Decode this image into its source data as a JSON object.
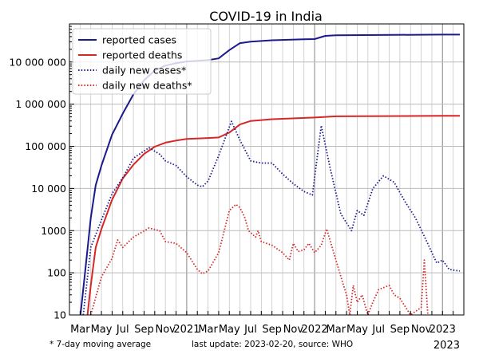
{
  "chart_data": {
    "type": "line",
    "title": "COVID-19 in India",
    "xlabel": "",
    "ylabel": "",
    "yscale": "log",
    "ylim": [
      10,
      80000000
    ],
    "xlim": [
      "2020-02-01",
      "2023-03-01"
    ],
    "grid": true,
    "legend_position": "top-left",
    "y_ticks": [
      {
        "value": 10,
        "label": "10"
      },
      {
        "value": 100,
        "label": "100"
      },
      {
        "value": 1000,
        "label": "1000"
      },
      {
        "value": 10000,
        "label": "10 000"
      },
      {
        "value": 100000,
        "label": "100 000"
      },
      {
        "value": 1000000,
        "label": "1 000 000"
      },
      {
        "value": 10000000,
        "label": "10 000 000"
      }
    ],
    "x_ticks": [
      {
        "date": "2020-03-01",
        "label": "Mar"
      },
      {
        "date": "2020-05-01",
        "label": "May"
      },
      {
        "date": "2020-07-01",
        "label": "Jul"
      },
      {
        "date": "2020-09-01",
        "label": "Sep"
      },
      {
        "date": "2020-11-01",
        "label": "Nov"
      },
      {
        "date": "2021-01-01",
        "label": "2021"
      },
      {
        "date": "2021-03-01",
        "label": "Mar"
      },
      {
        "date": "2021-05-01",
        "label": "May"
      },
      {
        "date": "2021-07-01",
        "label": "Jul"
      },
      {
        "date": "2021-09-01",
        "label": "Sep"
      },
      {
        "date": "2021-11-01",
        "label": "Nov"
      },
      {
        "date": "2022-01-01",
        "label": "2022"
      },
      {
        "date": "2022-03-01",
        "label": "Mar"
      },
      {
        "date": "2022-05-01",
        "label": "May"
      },
      {
        "date": "2022-07-01",
        "label": "Jul"
      },
      {
        "date": "2022-09-01",
        "label": "Sep"
      },
      {
        "date": "2022-11-01",
        "label": "Nov"
      },
      {
        "date": "2023-01-01",
        "label": "2023"
      }
    ],
    "series": [
      {
        "name": "reported cases",
        "color": "#1a1a8c",
        "style": "solid",
        "points": [
          [
            "2020-03-02",
            10
          ],
          [
            "2020-03-15",
            100
          ],
          [
            "2020-04-01",
            2000
          ],
          [
            "2020-04-15",
            12000
          ],
          [
            "2020-05-01",
            35000
          ],
          [
            "2020-06-01",
            190000
          ],
          [
            "2020-07-01",
            600000
          ],
          [
            "2020-08-01",
            1700000
          ],
          [
            "2020-09-01",
            3700000
          ],
          [
            "2020-10-01",
            6300000
          ],
          [
            "2020-11-01",
            8200000
          ],
          [
            "2020-12-01",
            9400000
          ],
          [
            "2021-01-01",
            10300000
          ],
          [
            "2021-03-01",
            11100000
          ],
          [
            "2021-04-01",
            12200000
          ],
          [
            "2021-05-01",
            19200000
          ],
          [
            "2021-06-01",
            28000000
          ],
          [
            "2021-07-01",
            30400000
          ],
          [
            "2021-09-01",
            32800000
          ],
          [
            "2021-12-01",
            34600000
          ],
          [
            "2022-01-01",
            34900000
          ],
          [
            "2022-02-01",
            41600000
          ],
          [
            "2022-03-01",
            42900000
          ],
          [
            "2022-07-01",
            43700000
          ],
          [
            "2023-01-01",
            44700000
          ],
          [
            "2023-02-20",
            44700000
          ]
        ]
      },
      {
        "name": "reported deaths",
        "color": "#d62728",
        "style": "solid",
        "points": [
          [
            "2020-03-22",
            10
          ],
          [
            "2020-04-01",
            50
          ],
          [
            "2020-04-15",
            400
          ],
          [
            "2020-05-01",
            1100
          ],
          [
            "2020-06-01",
            5400
          ],
          [
            "2020-07-01",
            17400
          ],
          [
            "2020-08-01",
            36500
          ],
          [
            "2020-09-01",
            66000
          ],
          [
            "2020-10-01",
            98000
          ],
          [
            "2020-11-01",
            122000
          ],
          [
            "2020-12-01",
            137000
          ],
          [
            "2021-01-01",
            149000
          ],
          [
            "2021-03-01",
            157000
          ],
          [
            "2021-04-01",
            162000
          ],
          [
            "2021-05-01",
            212000
          ],
          [
            "2021-06-01",
            330000
          ],
          [
            "2021-07-01",
            400000
          ],
          [
            "2021-09-01",
            440000
          ],
          [
            "2022-01-01",
            481000
          ],
          [
            "2022-03-01",
            515000
          ],
          [
            "2023-01-01",
            530000
          ],
          [
            "2023-02-20",
            530700
          ]
        ]
      },
      {
        "name": "daily new cases*",
        "color": "#1a1a8c",
        "style": "dotted",
        "points": [
          [
            "2020-03-10",
            10
          ],
          [
            "2020-04-01",
            400
          ],
          [
            "2020-05-01",
            1800
          ],
          [
            "2020-06-01",
            7500
          ],
          [
            "2020-07-01",
            18000
          ],
          [
            "2020-08-01",
            52000
          ],
          [
            "2020-09-15",
            93000
          ],
          [
            "2020-10-15",
            65000
          ],
          [
            "2020-11-01",
            45000
          ],
          [
            "2020-12-01",
            35000
          ],
          [
            "2021-01-01",
            19000
          ],
          [
            "2021-02-01",
            12000
          ],
          [
            "2021-02-15",
            11000
          ],
          [
            "2021-03-01",
            15000
          ],
          [
            "2021-04-01",
            60000
          ],
          [
            "2021-05-07",
            390000
          ],
          [
            "2021-06-01",
            140000
          ],
          [
            "2021-07-01",
            45000
          ],
          [
            "2021-08-01",
            40000
          ],
          [
            "2021-09-01",
            40000
          ],
          [
            "2021-10-01",
            22000
          ],
          [
            "2021-11-01",
            13000
          ],
          [
            "2021-12-01",
            8500
          ],
          [
            "2021-12-25",
            7000
          ],
          [
            "2022-01-20",
            310000
          ],
          [
            "2022-02-15",
            30000
          ],
          [
            "2022-03-15",
            2500
          ],
          [
            "2022-04-15",
            1000
          ],
          [
            "2022-05-01",
            3000
          ],
          [
            "2022-05-20",
            2300
          ],
          [
            "2022-06-15",
            10000
          ],
          [
            "2022-07-15",
            20000
          ],
          [
            "2022-08-15",
            14000
          ],
          [
            "2022-09-15",
            5000
          ],
          [
            "2022-10-15",
            2000
          ],
          [
            "2022-11-15",
            600
          ],
          [
            "2022-12-15",
            170
          ],
          [
            "2023-01-01",
            200
          ],
          [
            "2023-01-20",
            120
          ],
          [
            "2023-02-20",
            110
          ]
        ]
      },
      {
        "name": "daily new deaths*",
        "color": "#d62728",
        "style": "dotted",
        "points": [
          [
            "2020-04-01",
            10
          ],
          [
            "2020-05-01",
            80
          ],
          [
            "2020-06-01",
            220
          ],
          [
            "2020-06-17",
            600
          ],
          [
            "2020-07-01",
            400
          ],
          [
            "2020-08-01",
            700
          ],
          [
            "2020-09-15",
            1150
          ],
          [
            "2020-10-15",
            1000
          ],
          [
            "2020-11-01",
            550
          ],
          [
            "2020-12-01",
            500
          ],
          [
            "2021-01-01",
            300
          ],
          [
            "2021-02-01",
            120
          ],
          [
            "2021-02-15",
            95
          ],
          [
            "2021-03-01",
            110
          ],
          [
            "2021-04-01",
            300
          ],
          [
            "2021-05-01",
            3000
          ],
          [
            "2021-05-20",
            4200
          ],
          [
            "2021-06-01",
            3500
          ],
          [
            "2021-06-15",
            2000
          ],
          [
            "2021-06-25",
            1000
          ],
          [
            "2021-07-01",
            900
          ],
          [
            "2021-07-15",
            700
          ],
          [
            "2021-07-22",
            1000
          ],
          [
            "2021-08-01",
            550
          ],
          [
            "2021-09-01",
            450
          ],
          [
            "2021-10-01",
            300
          ],
          [
            "2021-10-20",
            200
          ],
          [
            "2021-11-01",
            500
          ],
          [
            "2021-11-15",
            320
          ],
          [
            "2021-12-01",
            350
          ],
          [
            "2021-12-15",
            500
          ],
          [
            "2022-01-01",
            300
          ],
          [
            "2022-01-20",
            450
          ],
          [
            "2022-02-05",
            1100
          ],
          [
            "2022-03-01",
            200
          ],
          [
            "2022-03-20",
            60
          ],
          [
            "2022-04-01",
            30
          ],
          [
            "2022-04-10",
            10
          ],
          [
            "2022-04-20",
            50
          ],
          [
            "2022-05-01",
            20
          ],
          [
            "2022-05-15",
            30
          ],
          [
            "2022-06-01",
            10
          ],
          [
            "2022-06-15",
            20
          ],
          [
            "2022-07-01",
            40
          ],
          [
            "2022-08-01",
            50
          ],
          [
            "2022-08-15",
            30
          ],
          [
            "2022-09-01",
            25
          ],
          [
            "2022-10-01",
            10
          ],
          [
            "2022-11-01",
            15
          ],
          [
            "2022-11-10",
            200
          ],
          [
            "2022-11-20",
            10
          ]
        ]
      }
    ]
  },
  "footer": {
    "note": "* 7-day moving average",
    "source": "last update: 2023-02-20, source: WHO",
    "year": "2023"
  }
}
